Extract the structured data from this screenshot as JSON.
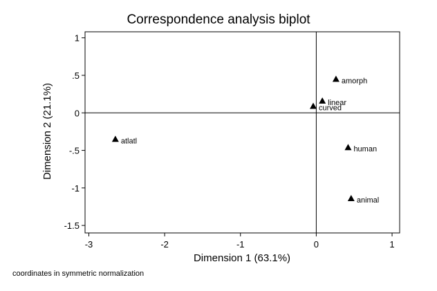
{
  "chart_data": {
    "type": "scatter",
    "title": "Correspondence analysis biplot",
    "xlabel": "Dimension 1 (63.1%)",
    "ylabel": "Dimension 2 (21.1%)",
    "note": "coordinates in symmetric normalization",
    "xlim": [
      -3.05,
      1.1
    ],
    "ylim": [
      -1.6,
      1.08
    ],
    "x_ticks": [
      -3,
      -2,
      -1,
      0,
      1
    ],
    "x_tick_labels": [
      "-3",
      "-2",
      "-1",
      "0",
      "1"
    ],
    "y_ticks": [
      1,
      0.5,
      0,
      -0.5,
      -1,
      -1.5
    ],
    "y_tick_labels": [
      "1",
      ".5",
      "0",
      "-.5",
      "-1",
      "-1.5"
    ],
    "reference_lines": {
      "x": 0,
      "y": 0
    },
    "marker": "triangle",
    "grid": false,
    "points": [
      {
        "label": "amorph",
        "x": 0.26,
        "y": 0.45
      },
      {
        "label": "linear",
        "x": 0.08,
        "y": 0.16
      },
      {
        "label": "curved",
        "x": -0.04,
        "y": 0.09
      },
      {
        "label": "atlatl",
        "x": -2.65,
        "y": -0.35
      },
      {
        "label": "human",
        "x": 0.42,
        "y": -0.46
      },
      {
        "label": "animal",
        "x": 0.46,
        "y": -1.14
      }
    ]
  }
}
